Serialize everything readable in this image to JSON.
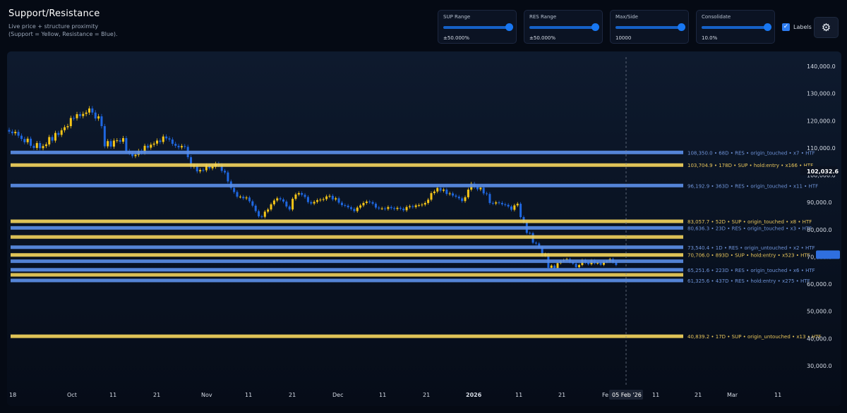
{
  "header": {
    "title": "Support/Resistance",
    "subtitle_line1": "Live price + structure proximity",
    "subtitle_line2": "(Support = Yellow, Resistance = Blue)."
  },
  "controls": [
    {
      "label": "SUP Range",
      "value": "±50.000%",
      "slider_level": 1.0
    },
    {
      "label": "RES Range",
      "value": "±50.000%",
      "slider_level": 1.0
    },
    {
      "label": "Max/Side",
      "value": "10000",
      "slider_level": 1.0
    },
    {
      "label": "Consolidate",
      "value": "10.0%",
      "slider_level": 1.0
    }
  ],
  "labels_toggle": {
    "label": "Labels",
    "checked": true
  },
  "settings_icon": "gear-icon",
  "colors": {
    "support": "#f2d35c",
    "resistance": "#5b8ee6",
    "candle_up": "#f5c518",
    "candle_down": "#1f67e0",
    "background": "#050a14",
    "accent": "#1877f2"
  },
  "chart_data": {
    "type": "candlestick",
    "y_axis": {
      "min": 20000,
      "max": 145000,
      "ticks": [
        140000,
        130000,
        120000,
        110000,
        100000,
        90000,
        80000,
        70000,
        60000,
        50000,
        40000,
        30000
      ],
      "tick_labels": [
        "140,000.0",
        "130,000.0",
        "120,000.0",
        "110,000.0",
        "100,000.0",
        "90,000.0",
        "80,000.0",
        "70,000.0",
        "60,000.0",
        "50,000.0",
        "40,000.0",
        "30,000.0"
      ]
    },
    "x_axis": {
      "ticks": [
        "18",
        "Oct",
        "11",
        "21",
        "Nov",
        "11",
        "21",
        "Dec",
        "11",
        "21",
        "2026",
        "11",
        "21",
        "Fe",
        "11",
        "21",
        "Mar",
        "11"
      ],
      "crosshair_label": "05 Feb '26"
    },
    "price_tag": "102,032.6",
    "current_price_tag": "",
    "levels": [
      {
        "price": 108350.0,
        "kind": "RES",
        "label": "108,350.0 • 68D • RES • origin_touched • x7 • HTF"
      },
      {
        "price": 103704.9,
        "kind": "SUP",
        "label": "103,704.9 • 178D • SUP • hold:entry • x166 • HTF"
      },
      {
        "price": 96192.9,
        "kind": "RES",
        "label": "96,192.9 • 363D • RES • origin_touched • x11 • HTF"
      },
      {
        "price": 83057.7,
        "kind": "SUP",
        "label": "83,057.7 • 52D • SUP • origin_touched • x8 • HTF"
      },
      {
        "price": 80636.3,
        "kind": "RES",
        "label": "80,636.3 • 23D • RES • origin_touched • x3 • HTF"
      },
      {
        "price": 73540.4,
        "kind": "RES",
        "label": "73,540.4 • 1D • RES • origin_untouched • x2 • HTF"
      },
      {
        "price": 70706.0,
        "kind": "SUP",
        "label": "70,706.0 • 893D • SUP • hold:entry • x523 • HTF"
      },
      {
        "price": 65251.6,
        "kind": "RES",
        "label": "65,251.6 • 223D • RES • origin_touched • x6 • HTF"
      },
      {
        "price": 61325.6,
        "kind": "RES",
        "label": "61,325.6 • 437D • RES • hold:entry • x275 • HTF"
      },
      {
        "price": 40839.2,
        "kind": "SUP",
        "label": "40,839.2 • 17D • SUP • origin_untouched • x13 • HTF"
      }
    ],
    "extra_bands": [
      {
        "price": 77300,
        "kind": "SUP"
      },
      {
        "price": 68400,
        "kind": "RES"
      },
      {
        "price": 63400,
        "kind": "SUP"
      }
    ],
    "closes": [
      116000,
      115400,
      115900,
      114500,
      113300,
      112100,
      113400,
      110800,
      110000,
      111800,
      109900,
      110700,
      111300,
      114000,
      112700,
      115500,
      114800,
      116500,
      117600,
      118000,
      121000,
      120900,
      122400,
      121700,
      122500,
      123000,
      124500,
      123000,
      120800,
      121600,
      118000,
      110600,
      112500,
      110500,
      112700,
      112800,
      112300,
      113600,
      108900,
      108100,
      107000,
      107500,
      108900,
      108300,
      110800,
      110100,
      111200,
      111600,
      112700,
      112200,
      114200,
      113500,
      113100,
      111500,
      110800,
      110200,
      110700,
      110400,
      106600,
      103100,
      103600,
      101400,
      101900,
      101800,
      103600,
      102500,
      103100,
      104200,
      103700,
      101600,
      101000,
      97700,
      95300,
      93800,
      92100,
      92100,
      91500,
      91800,
      90400,
      88800,
      86800,
      84900,
      84700,
      86600,
      87400,
      89300,
      90700,
      91500,
      91100,
      90300,
      88500,
      87400,
      91300,
      92900,
      93400,
      92800,
      92000,
      90100,
      89600,
      90200,
      90800,
      91000,
      91200,
      92200,
      92400,
      91100,
      91500,
      89900,
      89000,
      88800,
      88200,
      87600,
      86800,
      88100,
      88900,
      89800,
      90300,
      90100,
      89500,
      88100,
      87800,
      87800,
      87600,
      88300,
      87900,
      87600,
      88000,
      87700,
      87100,
      88300,
      88600,
      88300,
      88900,
      89000,
      89200,
      89800,
      91000,
      93400,
      94000,
      95300,
      94300,
      94700,
      93100,
      93300,
      92500,
      92100,
      91500,
      90500,
      91900,
      94700,
      96900,
      95600,
      94800,
      95400,
      93300,
      93100,
      89800,
      89600,
      90000,
      89800,
      89300,
      89100,
      88500,
      87300,
      88900,
      89500,
      84600,
      82800,
      78800,
      78700,
      75200,
      74900,
      73500,
      70500,
      71000,
      66000,
      66800,
      65900,
      67700,
      68500,
      68800,
      69200,
      68100,
      67500,
      66200,
      67000,
      68800,
      67800,
      67300,
      68700,
      67600,
      67800,
      67100,
      68200,
      68400,
      69200,
      68000,
      67000
    ]
  }
}
